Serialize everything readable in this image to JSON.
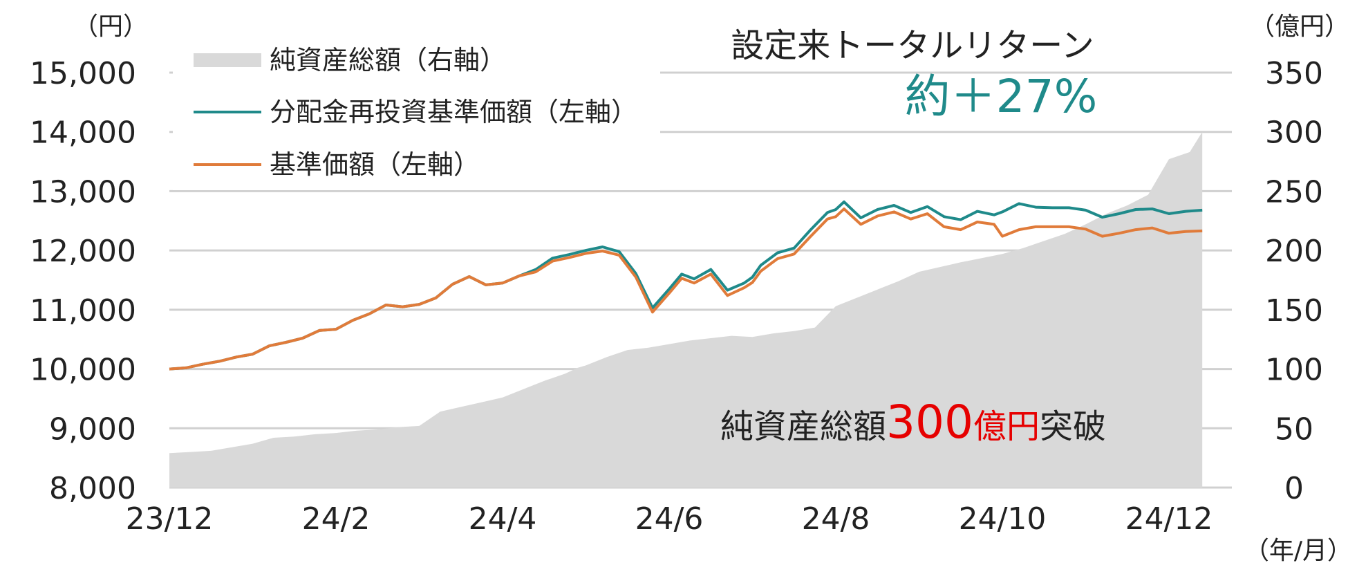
{
  "chart_data": {
    "type": "line",
    "units": {
      "left": "（円）",
      "right": "（億円）",
      "x": "（年/月）"
    },
    "x_ticks": [
      "23/12",
      "24/2",
      "24/4",
      "24/6",
      "24/8",
      "24/10",
      "24/12"
    ],
    "y_left": {
      "min": 8000,
      "max": 15000,
      "ticks": [
        "8,000",
        "9,000",
        "10,000",
        "11,000",
        "12,000",
        "13,000",
        "14,000",
        "15,000"
      ]
    },
    "y_right": {
      "min": 0,
      "max": 350,
      "ticks": [
        "0",
        "50",
        "100",
        "150",
        "200",
        "250",
        "300",
        "350"
      ]
    },
    "grid": true,
    "legend": {
      "position": "top-left",
      "items": [
        {
          "label": "純資産総額（右軸）",
          "color": "#d9d9d9",
          "kind": "area"
        },
        {
          "label": "分配金再投資基準価額（左軸）",
          "color": "#1f8a8a",
          "kind": "line"
        },
        {
          "label": "基準価額（左軸）",
          "color": "#e07b3a",
          "kind": "line"
        }
      ]
    },
    "series": [
      {
        "name": "純資産総額（右軸）",
        "axis": "right",
        "type": "area",
        "color": "#d9d9d9",
        "x": [
          0,
          0.25,
          0.5,
          1.0,
          1.25,
          1.5,
          1.75,
          2.0,
          2.25,
          2.5,
          2.75,
          3.0,
          3.25,
          3.5,
          3.75,
          4.0,
          4.25,
          4.5,
          4.75,
          4.9,
          5.0,
          5.25,
          5.5,
          5.75,
          6.0,
          6.25,
          6.5,
          6.75,
          7.0,
          7.25,
          7.5,
          7.75,
          8.0,
          8.25,
          8.5,
          8.75,
          9.0,
          9.5,
          10.0,
          10.25,
          10.5,
          10.75,
          11.0,
          11.25,
          11.5,
          11.75,
          12.0,
          12.25,
          12.4
        ],
        "values": [
          29,
          30,
          31,
          37,
          42,
          43,
          45,
          46,
          48,
          49,
          51,
          52,
          64,
          68,
          72,
          76,
          83,
          90,
          96,
          101,
          103,
          110,
          116,
          118,
          121,
          124,
          126,
          128,
          127,
          130,
          132,
          135,
          153,
          160,
          167,
          174,
          182,
          190,
          197,
          202,
          208,
          214,
          222,
          231,
          238,
          247,
          277,
          283,
          300
        ]
      },
      {
        "name": "分配金再投資基準価額（左軸）",
        "axis": "left",
        "type": "line",
        "color": "#1f8a8a",
        "x": [
          0,
          0.2,
          0.4,
          0.6,
          0.8,
          1.0,
          1.2,
          1.4,
          1.6,
          1.8,
          2.0,
          2.2,
          2.4,
          2.6,
          2.8,
          3.0,
          3.2,
          3.4,
          3.6,
          3.8,
          4.0,
          4.2,
          4.4,
          4.6,
          4.8,
          5.0,
          5.2,
          5.4,
          5.6,
          5.8,
          6.0,
          6.15,
          6.3,
          6.5,
          6.7,
          6.9,
          7.0,
          7.1,
          7.3,
          7.5,
          7.7,
          7.9,
          8.0,
          8.1,
          8.3,
          8.5,
          8.7,
          8.9,
          9.1,
          9.3,
          9.5,
          9.7,
          9.9,
          10.0,
          10.2,
          10.4,
          10.6,
          10.8,
          11.0,
          11.2,
          11.4,
          11.6,
          11.8,
          12.0,
          12.2,
          12.4
        ],
        "values": [
          10000,
          10020,
          10080,
          10130,
          10200,
          10250,
          10390,
          10450,
          10520,
          10650,
          10670,
          10820,
          10930,
          11080,
          11050,
          11090,
          11200,
          11430,
          11560,
          11420,
          11450,
          11570,
          11680,
          11870,
          11930,
          12000,
          12060,
          11980,
          11610,
          11030,
          11350,
          11600,
          11520,
          11680,
          11330,
          11450,
          11550,
          11750,
          11960,
          12040,
          12350,
          12640,
          12690,
          12820,
          12550,
          12690,
          12760,
          12640,
          12740,
          12570,
          12520,
          12660,
          12600,
          12650,
          12790,
          12730,
          12720,
          12720,
          12680,
          12560,
          12620,
          12690,
          12700,
          12620,
          12660,
          12680
        ]
      },
      {
        "name": "基準価額（左軸）",
        "axis": "left",
        "type": "line",
        "color": "#e07b3a",
        "x": [
          0,
          0.2,
          0.4,
          0.6,
          0.8,
          1.0,
          1.2,
          1.4,
          1.6,
          1.8,
          2.0,
          2.2,
          2.4,
          2.6,
          2.8,
          3.0,
          3.2,
          3.4,
          3.6,
          3.8,
          4.0,
          4.2,
          4.4,
          4.6,
          4.8,
          5.0,
          5.2,
          5.4,
          5.6,
          5.8,
          6.0,
          6.15,
          6.3,
          6.5,
          6.7,
          6.9,
          7.0,
          7.1,
          7.3,
          7.5,
          7.7,
          7.9,
          8.0,
          8.1,
          8.3,
          8.5,
          8.7,
          8.9,
          9.1,
          9.3,
          9.5,
          9.7,
          9.9,
          10.0,
          10.2,
          10.4,
          10.6,
          10.8,
          11.0,
          11.2,
          11.4,
          11.6,
          11.8,
          12.0,
          12.2,
          12.4
        ],
        "values": [
          10000,
          10020,
          10080,
          10130,
          10200,
          10250,
          10390,
          10450,
          10520,
          10650,
          10670,
          10820,
          10930,
          11080,
          11050,
          11090,
          11200,
          11430,
          11560,
          11420,
          11450,
          11570,
          11640,
          11820,
          11880,
          11950,
          11990,
          11920,
          11550,
          10960,
          11280,
          11530,
          11450,
          11600,
          11240,
          11370,
          11460,
          11650,
          11860,
          11940,
          12240,
          12530,
          12570,
          12700,
          12440,
          12580,
          12650,
          12530,
          12620,
          12400,
          12350,
          12480,
          12440,
          12240,
          12350,
          12400,
          12400,
          12400,
          12360,
          12240,
          12290,
          12350,
          12380,
          12290,
          12320,
          12330
        ]
      }
    ],
    "annotations": {
      "total_return_label": "設定来トータルリターン",
      "total_return_value": "約＋27%",
      "nav_prefix": "純資産総額",
      "nav_value": "300",
      "nav_unit": "億円",
      "nav_suffix": "突破"
    }
  }
}
